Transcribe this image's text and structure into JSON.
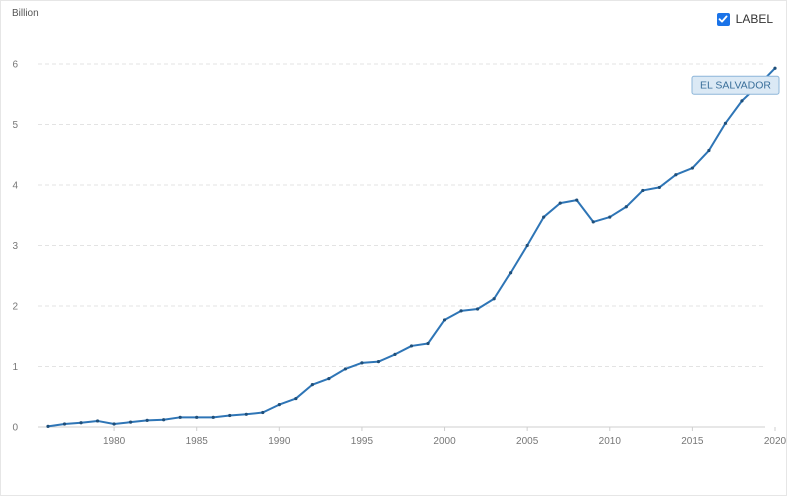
{
  "toggle": {
    "label": "LABEL",
    "checked": true
  },
  "colors": {
    "series": "#2e75b6",
    "grid": "#e3e3e3",
    "tag_bg": "#dbe9f5",
    "tag_border": "#8db6d9"
  },
  "chart_data": {
    "type": "line",
    "title": "",
    "unit_label": "Billion",
    "xlabel": "",
    "ylabel": "",
    "xlim": [
      1976,
      2020
    ],
    "ylim": [
      0,
      6
    ],
    "x_ticks": [
      1980,
      1985,
      1990,
      1995,
      2000,
      2005,
      2010,
      2015,
      2020
    ],
    "y_ticks": [
      0,
      1,
      2,
      3,
      4,
      5,
      6
    ],
    "grid": true,
    "series": [
      {
        "name": "EL SALVADOR",
        "x": [
          1976,
          1977,
          1978,
          1979,
          1980,
          1981,
          1982,
          1983,
          1984,
          1985,
          1986,
          1987,
          1988,
          1989,
          1990,
          1991,
          1992,
          1993,
          1994,
          1995,
          1996,
          1997,
          1998,
          1999,
          2000,
          2001,
          2002,
          2003,
          2004,
          2005,
          2006,
          2007,
          2008,
          2009,
          2010,
          2011,
          2012,
          2013,
          2014,
          2015,
          2016,
          2017,
          2018,
          2019,
          2020
        ],
        "values": [
          0.01,
          0.05,
          0.07,
          0.1,
          0.05,
          0.08,
          0.11,
          0.12,
          0.16,
          0.16,
          0.16,
          0.19,
          0.21,
          0.24,
          0.37,
          0.47,
          0.7,
          0.8,
          0.96,
          1.06,
          1.08,
          1.2,
          1.34,
          1.38,
          1.77,
          1.92,
          1.95,
          2.12,
          2.55,
          3.0,
          3.47,
          3.7,
          3.75,
          3.39,
          3.47,
          3.64,
          3.91,
          3.96,
          4.17,
          4.28,
          4.57,
          5.02,
          5.39,
          5.65,
          5.93
        ]
      }
    ]
  }
}
